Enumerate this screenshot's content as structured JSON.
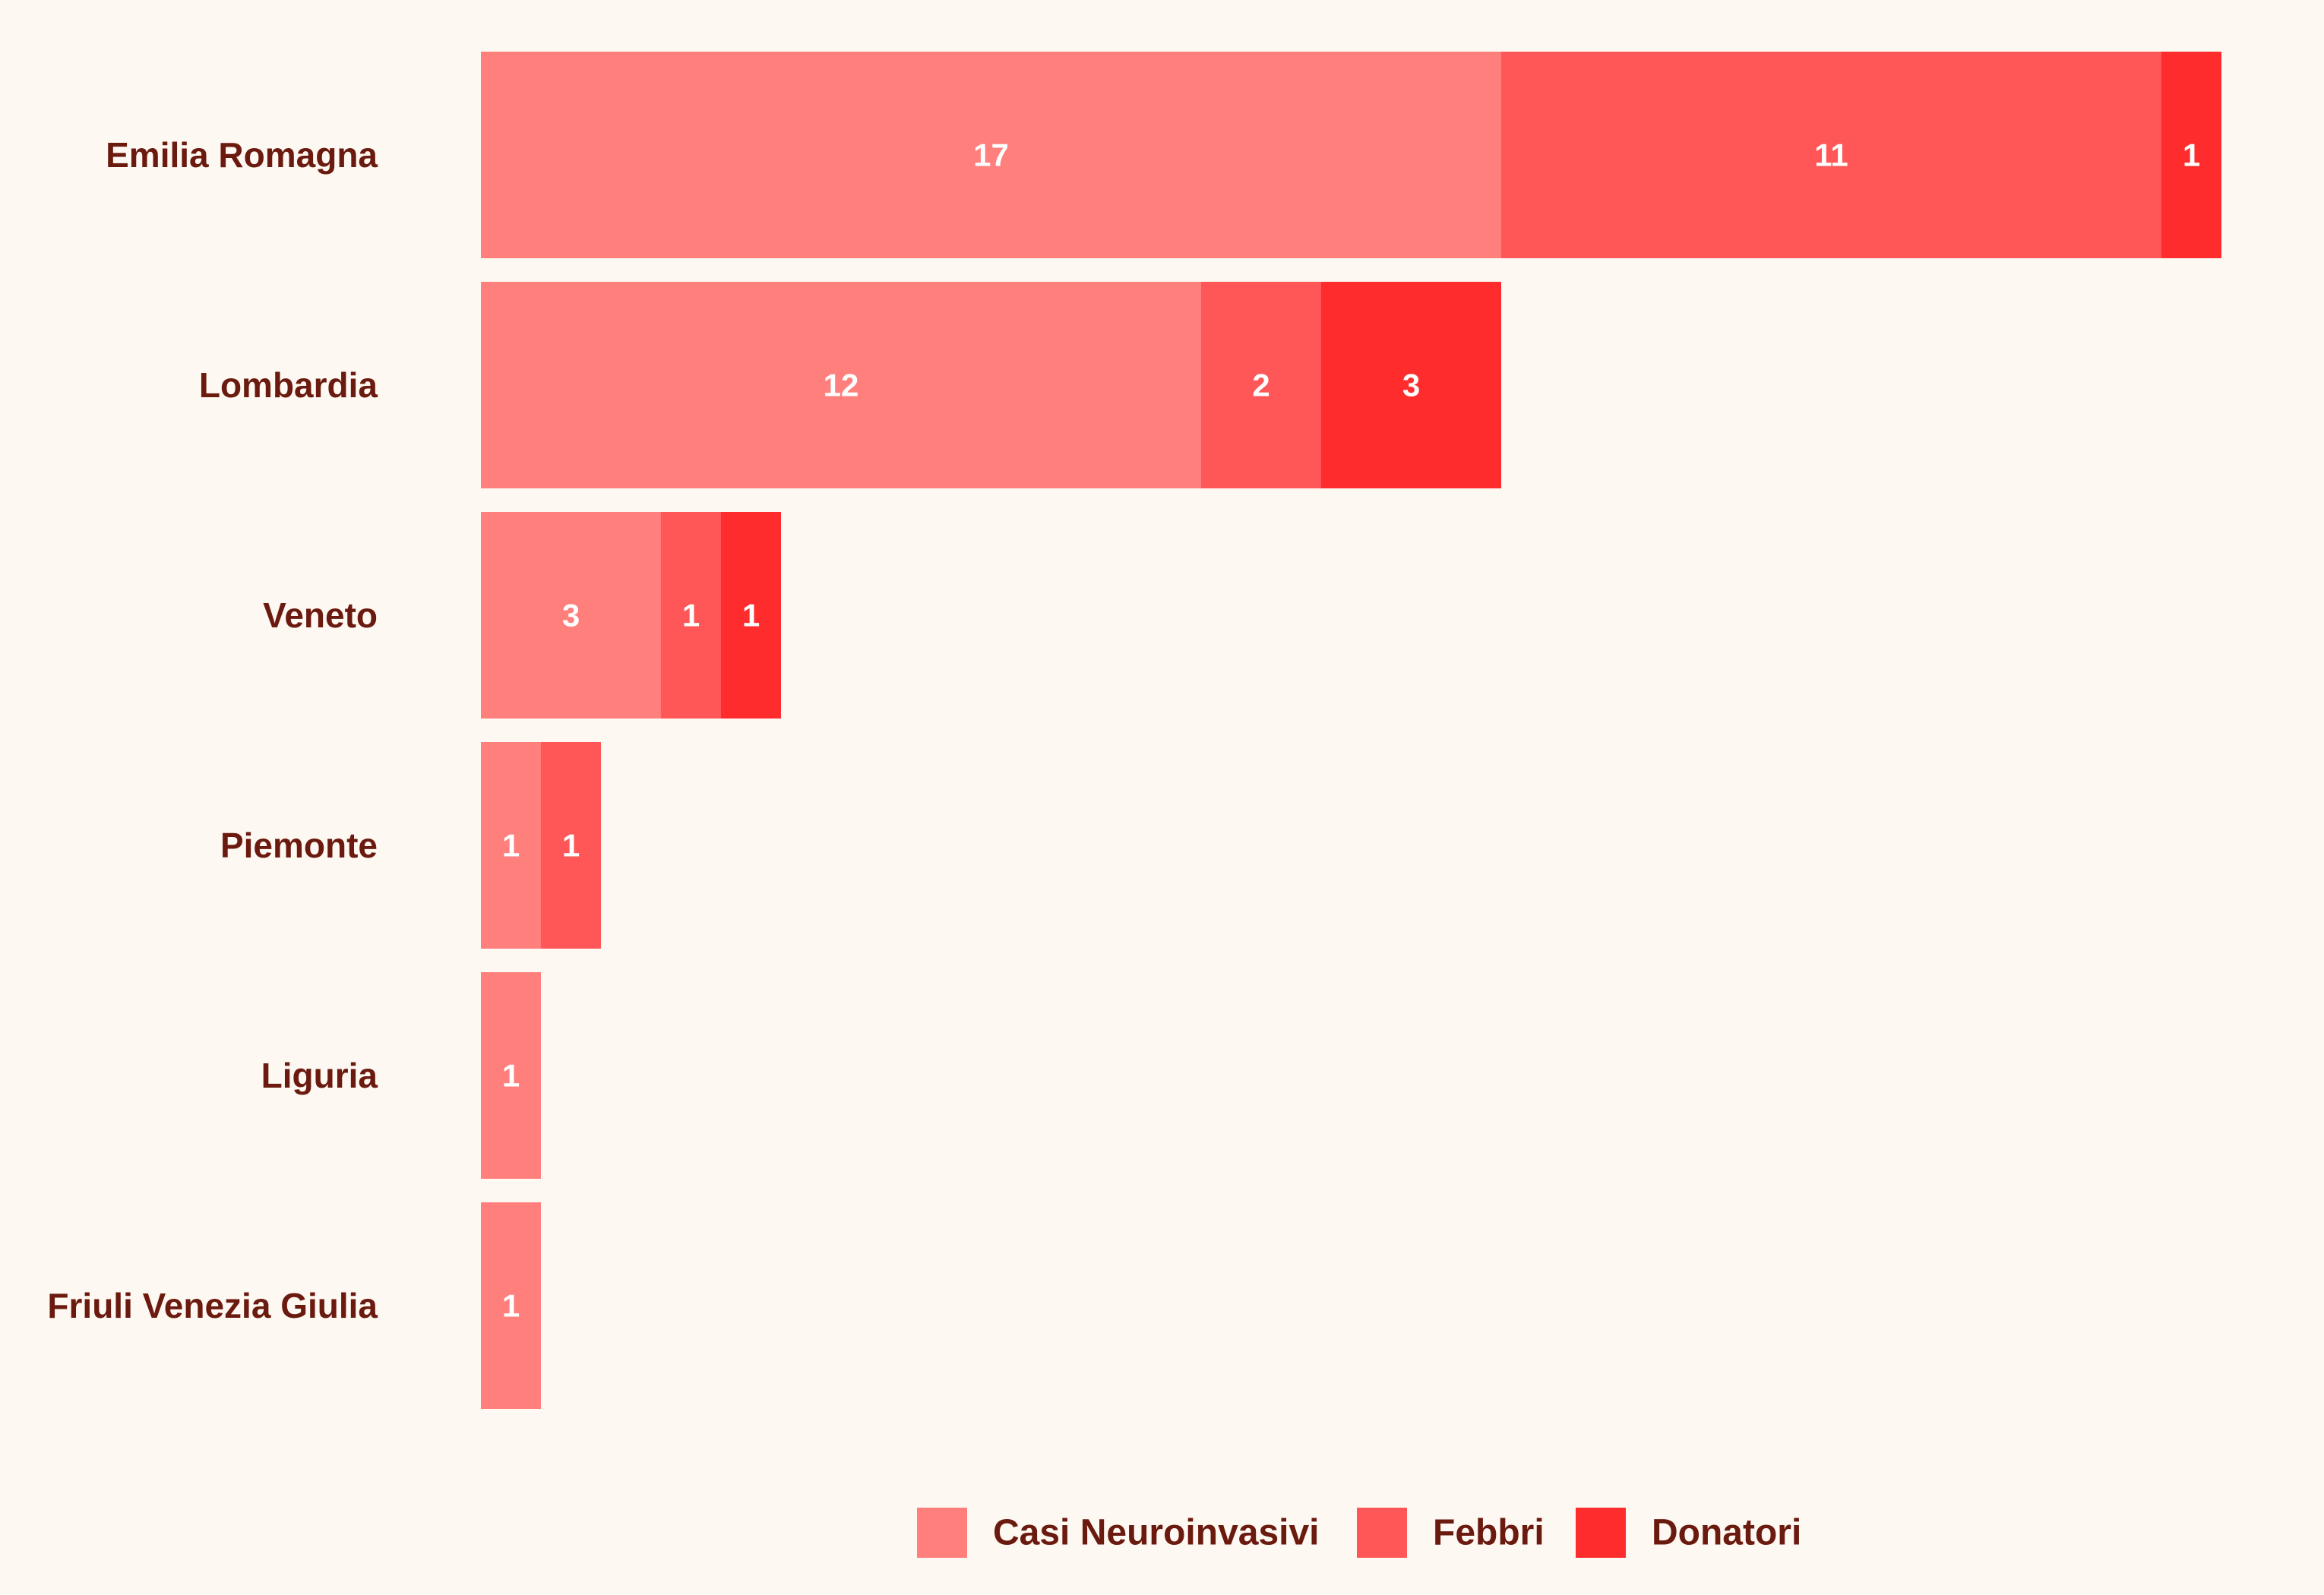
{
  "chart_data": {
    "type": "bar",
    "orientation": "horizontal",
    "stacked": true,
    "categories": [
      "Emilia Romagna",
      "Lombardia",
      "Veneto",
      "Piemonte",
      "Liguria",
      "Friuli Venezia Giulia"
    ],
    "series": [
      {
        "name": "Casi Neuroinvasivi",
        "values": [
          17,
          12,
          3,
          1,
          1,
          1
        ],
        "color": "#ff7f7c"
      },
      {
        "name": "Febbri",
        "values": [
          11,
          2,
          1,
          1,
          0,
          0
        ],
        "color": "#ff5757"
      },
      {
        "name": "Donatori",
        "values": [
          1,
          3,
          1,
          0,
          0,
          0
        ],
        "color": "#ff2c2e"
      }
    ],
    "xlim": [
      0,
      29
    ],
    "grid": false,
    "legend_position": "bottom",
    "background_color": "#fdf8f1",
    "label_color": "#6b1a0f"
  }
}
